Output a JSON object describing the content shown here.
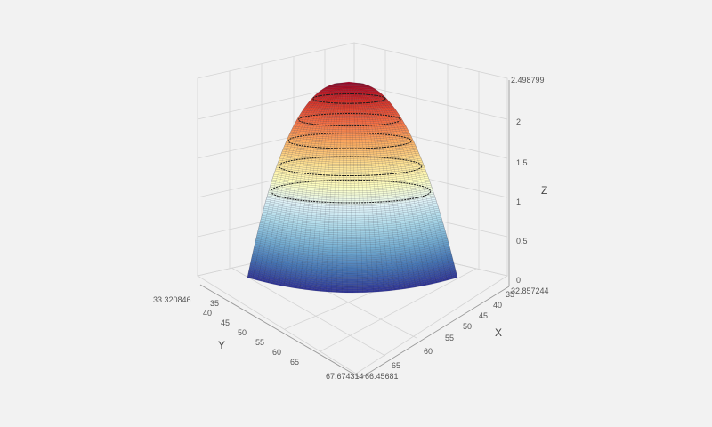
{
  "chart_data": {
    "type": "surface3d",
    "title": "",
    "colormap": [
      "#313695",
      "#4575b4",
      "#74add1",
      "#abd9e9",
      "#e0f3f8",
      "#ffffbf",
      "#fee090",
      "#fdae61",
      "#f46d43",
      "#d73027",
      "#a50026"
    ],
    "axes": {
      "x": {
        "label": "X",
        "range_labels": [
          "32.857244",
          "66.45681"
        ],
        "ticks": [
          "35",
          "40",
          "45",
          "50",
          "55",
          "60",
          "65"
        ]
      },
      "y": {
        "label": "Y",
        "range_labels": [
          "33.320846",
          "67.674314"
        ],
        "ticks": [
          "35",
          "40",
          "45",
          "50",
          "55",
          "60",
          "65"
        ]
      },
      "z": {
        "label": "Z",
        "max_label": "2.498799",
        "ticks": [
          "0",
          "0.5",
          "1",
          "1.5",
          "2"
        ]
      }
    },
    "surface": {
      "z_min": 0,
      "z_max": 2.498799,
      "peak": {
        "x": 45,
        "y": 42
      },
      "contour_levels": [
        1.2,
        1.5,
        1.8,
        2.05,
        2.3
      ]
    },
    "grid": true
  }
}
